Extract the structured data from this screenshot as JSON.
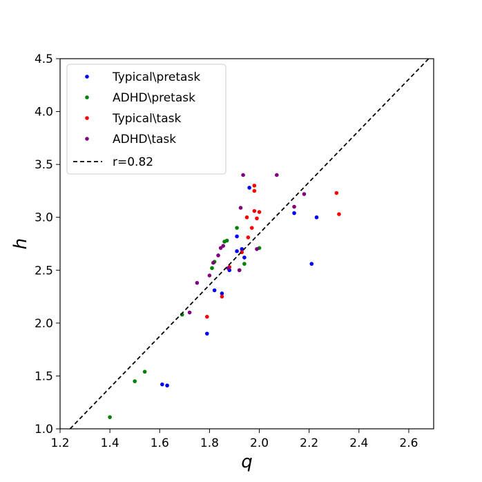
{
  "chart_data": {
    "type": "scatter",
    "xlabel": "q",
    "ylabel": "h",
    "xlim": [
      1.2,
      2.7
    ],
    "ylim": [
      1.0,
      4.5
    ],
    "xticks": [
      "1.2",
      "1.4",
      "1.6",
      "1.8",
      "2.0",
      "2.2",
      "2.4",
      "2.6"
    ],
    "yticks": [
      "1.0",
      "1.5",
      "2.0",
      "2.5",
      "3.0",
      "3.5",
      "4.0",
      "4.5"
    ],
    "grid": false,
    "legend_position": "top-left",
    "series": [
      {
        "name": "Typical\\pretask",
        "color": "#0000ff",
        "points": [
          [
            1.61,
            1.42
          ],
          [
            1.63,
            1.41
          ],
          [
            1.79,
            1.9
          ],
          [
            1.82,
            2.31
          ],
          [
            1.85,
            2.28
          ],
          [
            1.88,
            2.5
          ],
          [
            1.91,
            2.82
          ],
          [
            1.91,
            2.68
          ],
          [
            1.93,
            2.7
          ],
          [
            1.94,
            2.62
          ],
          [
            1.96,
            3.28
          ],
          [
            2.14,
            3.04
          ],
          [
            2.21,
            2.56
          ],
          [
            2.23,
            3.0
          ]
        ]
      },
      {
        "name": "ADHD\\pretask",
        "color": "#008000",
        "points": [
          [
            1.4,
            1.11
          ],
          [
            1.5,
            1.45
          ],
          [
            1.54,
            1.54
          ],
          [
            1.69,
            2.08
          ],
          [
            1.81,
            2.52
          ],
          [
            1.82,
            2.58
          ],
          [
            1.86,
            2.77
          ],
          [
            1.87,
            2.78
          ],
          [
            1.91,
            2.9
          ],
          [
            1.92,
            2.5
          ],
          [
            1.94,
            2.56
          ],
          [
            2.0,
            2.71
          ]
        ]
      },
      {
        "name": "Typical\\task",
        "color": "#ff0000",
        "points": [
          [
            1.79,
            2.06
          ],
          [
            1.85,
            2.25
          ],
          [
            1.88,
            2.53
          ],
          [
            1.93,
            2.67
          ],
          [
            1.95,
            3.0
          ],
          [
            1.955,
            2.81
          ],
          [
            1.97,
            2.9
          ],
          [
            1.98,
            3.3
          ],
          [
            1.98,
            3.25
          ],
          [
            1.98,
            3.06
          ],
          [
            1.99,
            2.99
          ],
          [
            2.0,
            3.05
          ],
          [
            2.31,
            3.23
          ],
          [
            2.32,
            3.03
          ]
        ]
      },
      {
        "name": "ADHD\\task",
        "color": "#800080",
        "points": [
          [
            1.72,
            2.1
          ],
          [
            1.75,
            2.38
          ],
          [
            1.8,
            2.45
          ],
          [
            1.815,
            2.57
          ],
          [
            1.835,
            2.64
          ],
          [
            1.845,
            2.71
          ],
          [
            1.855,
            2.73
          ],
          [
            1.875,
            2.52
          ],
          [
            1.92,
            2.5
          ],
          [
            1.925,
            3.09
          ],
          [
            1.935,
            3.4
          ],
          [
            1.99,
            2.7
          ],
          [
            2.07,
            3.4
          ],
          [
            2.14,
            3.1
          ],
          [
            2.18,
            3.22
          ]
        ]
      }
    ],
    "fit_line": {
      "name": "r=0.82",
      "color": "#000000",
      "style": "dashed",
      "points": [
        [
          1.24,
          1.0
        ],
        [
          2.68,
          4.5
        ]
      ]
    }
  }
}
